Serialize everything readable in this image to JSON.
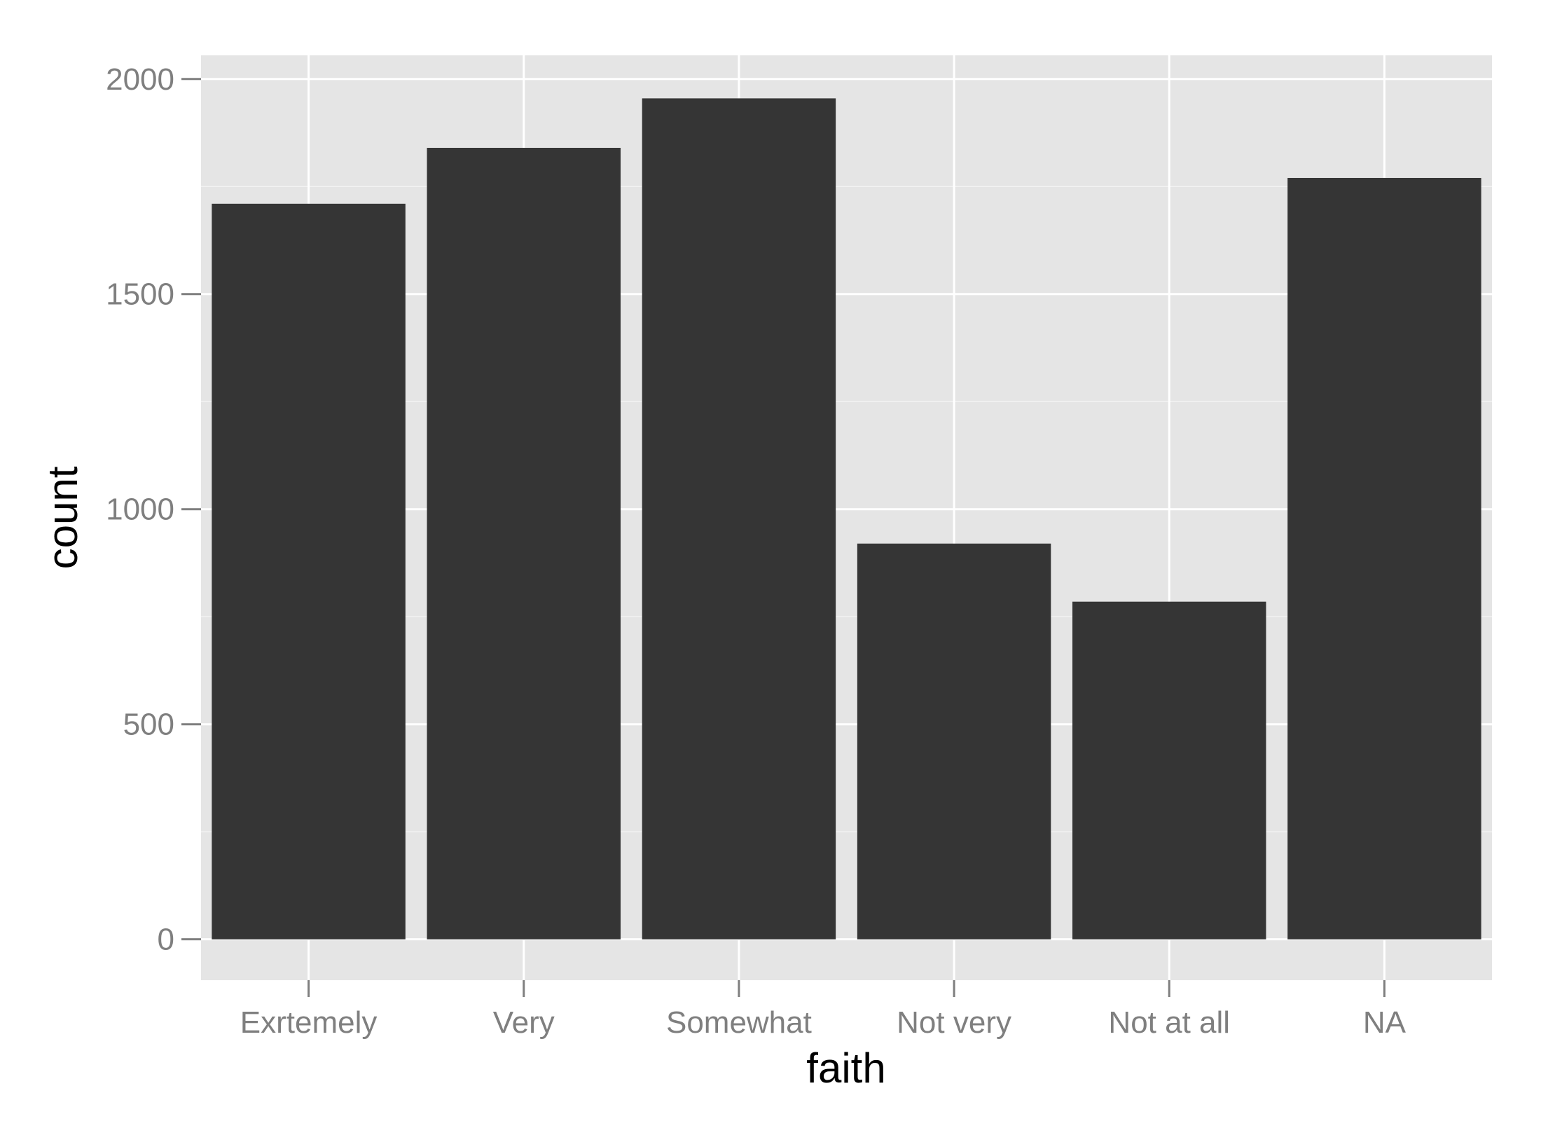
{
  "chart_data": {
    "type": "bar",
    "title": "",
    "xlabel": "faith",
    "ylabel": "count",
    "categories": [
      "Exrtemely",
      "Very",
      "Somewhat",
      "Not very",
      "Not at all",
      "NA"
    ],
    "values": [
      1710,
      1840,
      1955,
      920,
      785,
      1770
    ],
    "ylim": [
      -95,
      2055
    ],
    "yticks": [
      0,
      500,
      1000,
      1500,
      2000
    ],
    "ytick_labels": [
      "0",
      "500",
      "1000",
      "1500",
      "2000"
    ],
    "grid": true,
    "legend": "none",
    "colors": {
      "bar": "#353535",
      "panel": "#e5e5e5",
      "grid_major": "#ffffff",
      "grid_minor": "#f2f2f2",
      "tick_text": "#7f7f7f",
      "axis_title": "#000000"
    }
  }
}
